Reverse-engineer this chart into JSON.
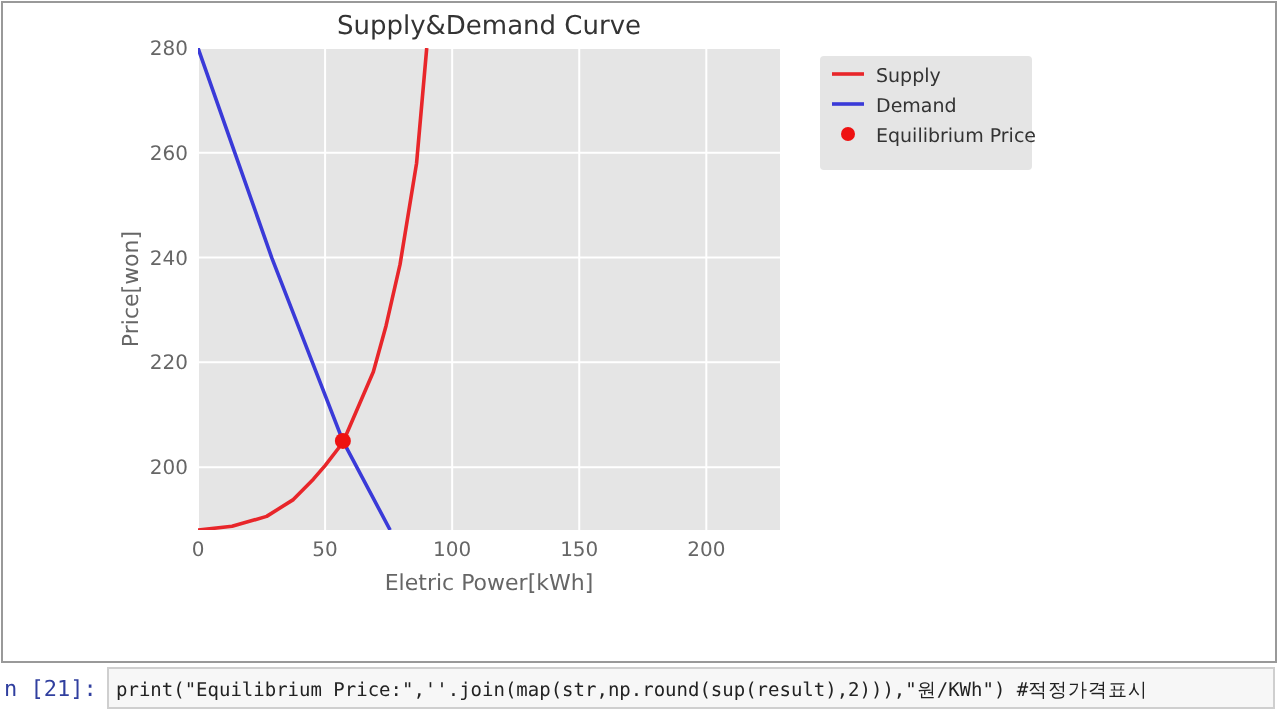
{
  "chart_data": {
    "type": "line",
    "title": "Supply&Demand Curve",
    "xlabel": "Eletric Power[kWh]",
    "ylabel": "Price[won]",
    "xlim": [
      0,
      229
    ],
    "ylim": [
      188,
      280
    ],
    "xticks": [
      0,
      50,
      100,
      150,
      200
    ],
    "yticks": [
      200,
      220,
      240,
      260,
      280
    ],
    "grid": true,
    "legend": "top right",
    "series": [
      {
        "name": "Supply",
        "type": "line",
        "color": "#e8262a",
        "marker": "none",
        "x": [
          0,
          13.4,
          27,
          37.5,
          45.4,
          50,
          57,
          69,
          74,
          79.5,
          86,
          90
        ],
        "values": [
          188,
          188.7,
          190.6,
          193.8,
          197.7,
          200.3,
          204.7,
          218.2,
          227,
          238.7,
          258,
          280
        ]
      },
      {
        "name": "Demand",
        "type": "line",
        "color": "#3a3ad8",
        "marker": "none",
        "x": [
          0,
          14.5,
          29,
          57,
          75.6
        ],
        "values": [
          280,
          260,
          240,
          205,
          188
        ]
      },
      {
        "name": "Equilibrium Price",
        "type": "scatter",
        "color": "#ee1111",
        "marker": "circle",
        "x": [
          57
        ],
        "values": [
          205
        ]
      }
    ],
    "annotations": [
      "n [21]:",
      "print(\"Equilibrium Price:\",''.join(map(str,np.round(sup(result),2))),\"원/KWh\") #적정가격표시"
    ]
  }
}
